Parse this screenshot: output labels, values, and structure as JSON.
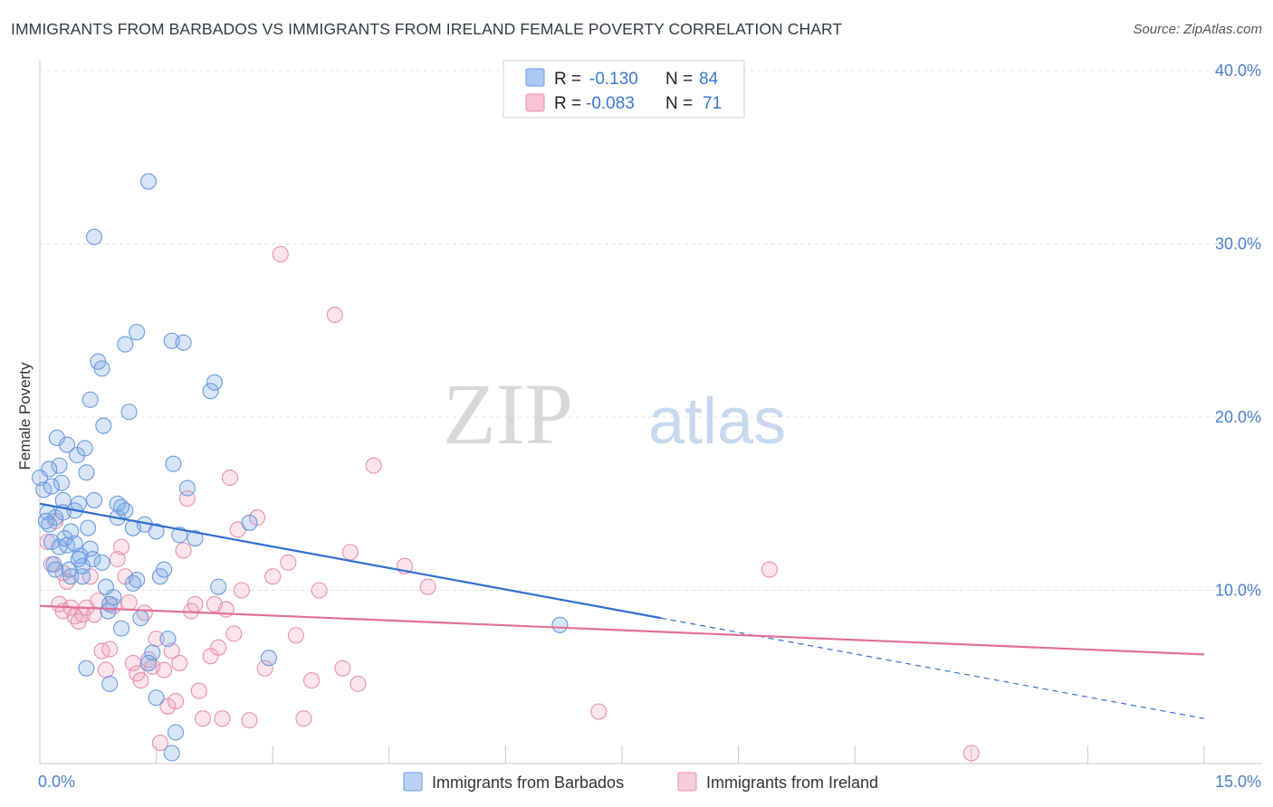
{
  "chart_data": {
    "type": "scatter",
    "title": "IMMIGRANTS FROM BARBADOS VS IMMIGRANTS FROM IRELAND FEMALE POVERTY CORRELATION CHART",
    "source": "Source: ZipAtlas.com",
    "xlabel": "",
    "ylabel": "Female Poverty",
    "xlim": [
      0,
      15
    ],
    "ylim": [
      0,
      40
    ],
    "x_tick_labels": [
      "0.0%",
      "15.0%"
    ],
    "y_tick_labels": [
      "10.0%",
      "20.0%",
      "30.0%",
      "40.0%"
    ],
    "y_ticks": [
      10,
      20,
      30,
      40
    ],
    "watermark": {
      "part1": "ZIP",
      "part2": "atlas"
    },
    "legend": {
      "rows": [
        {
          "r_label": "R =",
          "r_value": "-0.130",
          "n_label": "N =",
          "n_value": "84",
          "color": "#a9c8f2"
        },
        {
          "r_label": "R =",
          "r_value": "-0.083",
          "n_label": "N =",
          "n_value": "71",
          "color": "#f7b8cb"
        }
      ]
    },
    "series": [
      {
        "name": "Immigrants from Barbados",
        "color": "#7aa9e6",
        "line_color": "#2f6fd0",
        "trend": {
          "x0": 0,
          "y0": 15.0,
          "x1": 8.0,
          "y1": 8.4,
          "x_ext": 15.0,
          "y_ext": 2.6
        },
        "points": [
          [
            0.0,
            16.5
          ],
          [
            0.05,
            15.8
          ],
          [
            0.1,
            14.5
          ],
          [
            0.12,
            13.8
          ],
          [
            0.15,
            12.8
          ],
          [
            0.18,
            11.5
          ],
          [
            0.2,
            14.2
          ],
          [
            0.22,
            18.8
          ],
          [
            0.25,
            17.2
          ],
          [
            0.28,
            16.2
          ],
          [
            0.3,
            15.2
          ],
          [
            0.32,
            13.0
          ],
          [
            0.35,
            12.6
          ],
          [
            0.38,
            11.2
          ],
          [
            0.4,
            10.8
          ],
          [
            0.45,
            14.6
          ],
          [
            0.48,
            17.8
          ],
          [
            0.5,
            15.0
          ],
          [
            0.52,
            12.0
          ],
          [
            0.55,
            11.4
          ],
          [
            0.58,
            18.2
          ],
          [
            0.6,
            16.8
          ],
          [
            0.62,
            13.6
          ],
          [
            0.65,
            12.4
          ],
          [
            0.68,
            11.8
          ],
          [
            0.7,
            15.2
          ],
          [
            0.75,
            23.2
          ],
          [
            0.8,
            22.8
          ],
          [
            0.82,
            19.5
          ],
          [
            0.85,
            10.2
          ],
          [
            0.88,
            8.8
          ],
          [
            0.9,
            4.6
          ],
          [
            0.95,
            9.6
          ],
          [
            1.0,
            14.2
          ],
          [
            1.05,
            7.8
          ],
          [
            1.1,
            24.2
          ],
          [
            1.15,
            20.3
          ],
          [
            1.2,
            10.4
          ],
          [
            1.25,
            24.9
          ],
          [
            1.3,
            8.4
          ],
          [
            1.35,
            13.8
          ],
          [
            1.4,
            33.6
          ],
          [
            1.45,
            6.4
          ],
          [
            1.5,
            3.8
          ],
          [
            1.55,
            10.8
          ],
          [
            1.6,
            11.2
          ],
          [
            1.65,
            7.2
          ],
          [
            1.7,
            24.4
          ],
          [
            1.72,
            17.3
          ],
          [
            1.75,
            1.8
          ],
          [
            1.8,
            13.2
          ],
          [
            1.85,
            24.3
          ],
          [
            1.9,
            15.9
          ],
          [
            2.0,
            13.0
          ],
          [
            2.2,
            21.5
          ],
          [
            2.25,
            22.0
          ],
          [
            2.3,
            10.2
          ],
          [
            2.7,
            13.9
          ],
          [
            2.95,
            6.1
          ],
          [
            0.08,
            14.0
          ],
          [
            0.15,
            16.0
          ],
          [
            0.25,
            12.5
          ],
          [
            0.35,
            18.4
          ],
          [
            0.45,
            12.7
          ],
          [
            0.55,
            10.8
          ],
          [
            0.65,
            21.0
          ],
          [
            0.7,
            30.4
          ],
          [
            0.8,
            11.6
          ],
          [
            0.9,
            9.2
          ],
          [
            1.0,
            15.0
          ],
          [
            1.1,
            14.6
          ],
          [
            1.25,
            10.6
          ],
          [
            1.4,
            5.8
          ],
          [
            1.5,
            13.4
          ],
          [
            1.7,
            0.6
          ],
          [
            0.6,
            5.5
          ],
          [
            0.3,
            14.5
          ],
          [
            0.2,
            11.2
          ],
          [
            0.4,
            13.4
          ],
          [
            0.5,
            11.8
          ],
          [
            1.05,
            14.8
          ],
          [
            1.2,
            13.6
          ],
          [
            6.7,
            8.0
          ],
          [
            0.12,
            17.0
          ]
        ]
      },
      {
        "name": "Immigrants from Ireland",
        "color": "#f0a0b8",
        "line_color": "#e0709a",
        "trend": {
          "x0": 0,
          "y0": 9.1,
          "x1": 15.0,
          "y1": 6.3
        },
        "points": [
          [
            0.1,
            12.8
          ],
          [
            0.15,
            11.5
          ],
          [
            0.2,
            14.0
          ],
          [
            0.25,
            9.2
          ],
          [
            0.3,
            8.8
          ],
          [
            0.35,
            10.5
          ],
          [
            0.4,
            9.0
          ],
          [
            0.45,
            8.5
          ],
          [
            0.5,
            8.2
          ],
          [
            0.55,
            8.6
          ],
          [
            0.6,
            9.0
          ],
          [
            0.65,
            10.8
          ],
          [
            0.7,
            8.6
          ],
          [
            0.75,
            9.4
          ],
          [
            0.8,
            6.5
          ],
          [
            0.85,
            5.4
          ],
          [
            0.9,
            6.6
          ],
          [
            0.95,
            9.1
          ],
          [
            1.0,
            11.8
          ],
          [
            1.05,
            12.5
          ],
          [
            1.1,
            10.8
          ],
          [
            1.15,
            9.3
          ],
          [
            1.2,
            5.8
          ],
          [
            1.25,
            5.2
          ],
          [
            1.3,
            4.8
          ],
          [
            1.35,
            8.7
          ],
          [
            1.4,
            6.0
          ],
          [
            1.45,
            5.6
          ],
          [
            1.5,
            7.2
          ],
          [
            1.55,
            1.2
          ],
          [
            1.6,
            5.4
          ],
          [
            1.65,
            3.3
          ],
          [
            1.7,
            6.5
          ],
          [
            1.75,
            3.6
          ],
          [
            1.8,
            5.8
          ],
          [
            1.85,
            12.3
          ],
          [
            1.9,
            15.3
          ],
          [
            1.95,
            8.8
          ],
          [
            2.0,
            9.2
          ],
          [
            2.05,
            4.2
          ],
          [
            2.1,
            2.6
          ],
          [
            2.2,
            6.2
          ],
          [
            2.25,
            9.2
          ],
          [
            2.3,
            6.7
          ],
          [
            2.35,
            2.6
          ],
          [
            2.4,
            8.9
          ],
          [
            2.45,
            16.5
          ],
          [
            2.5,
            7.5
          ],
          [
            2.55,
            13.5
          ],
          [
            2.6,
            10.0
          ],
          [
            2.7,
            2.5
          ],
          [
            2.8,
            14.2
          ],
          [
            2.9,
            5.5
          ],
          [
            3.0,
            10.8
          ],
          [
            3.1,
            29.4
          ],
          [
            3.2,
            11.6
          ],
          [
            3.3,
            7.4
          ],
          [
            3.4,
            2.6
          ],
          [
            3.5,
            4.8
          ],
          [
            3.6,
            10.0
          ],
          [
            3.8,
            25.9
          ],
          [
            3.9,
            5.5
          ],
          [
            4.0,
            12.2
          ],
          [
            4.1,
            4.6
          ],
          [
            4.3,
            17.2
          ],
          [
            4.7,
            11.4
          ],
          [
            5.0,
            10.2
          ],
          [
            7.2,
            3.0
          ],
          [
            9.4,
            11.2
          ],
          [
            12.0,
            0.6
          ],
          [
            0.3,
            11.0
          ]
        ]
      }
    ]
  }
}
